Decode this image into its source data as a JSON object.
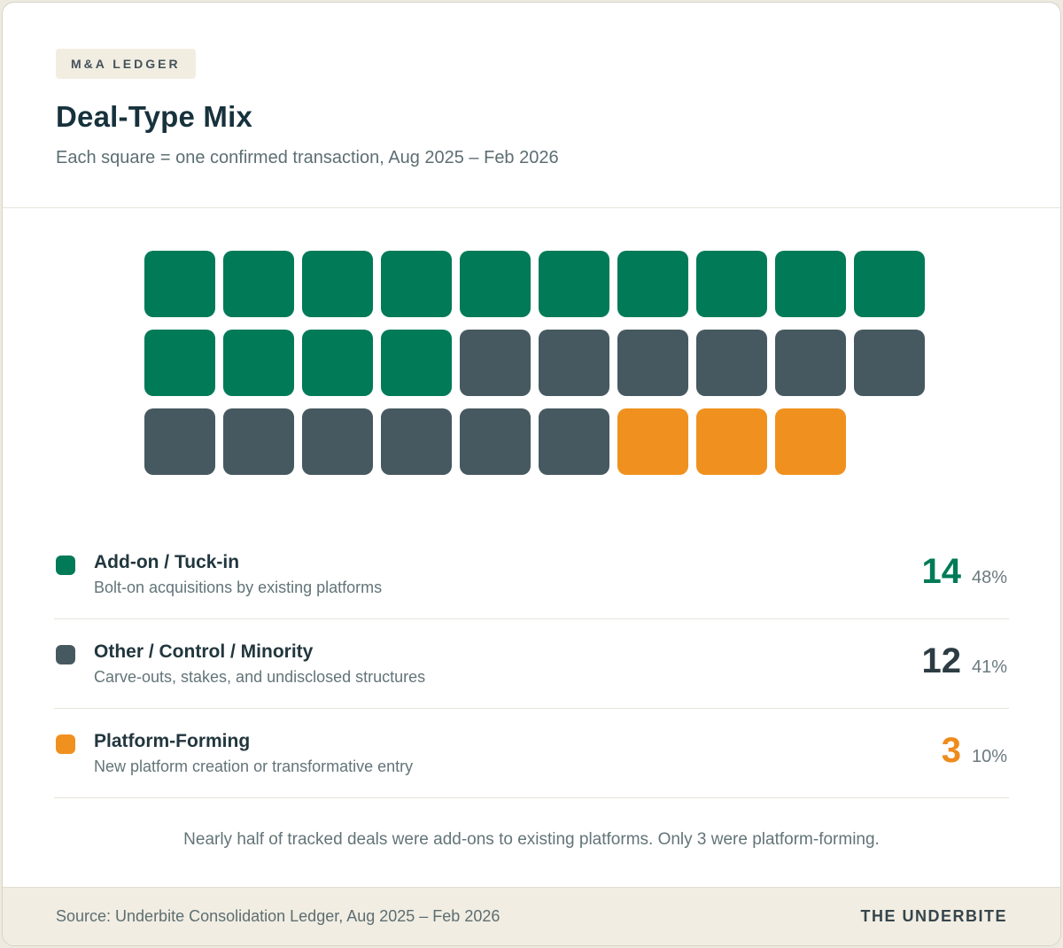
{
  "badge": "M&A LEDGER",
  "title": "Deal-Type Mix",
  "subtitle": "Each square = one confirmed transaction, Aug 2025 – Feb 2026",
  "chart_data": {
    "type": "waffle",
    "title": "Deal-Type Mix",
    "unit": "one confirmed transaction per square",
    "period": "Aug 2025 – Feb 2026",
    "total": 29,
    "columns": 10,
    "categories": [
      "Add-on / Tuck-in",
      "Other / Control / Minority",
      "Platform-Forming"
    ],
    "values": [
      14,
      12,
      3
    ],
    "percents": [
      48,
      41,
      10
    ],
    "colors": [
      "#007a57",
      "#475960",
      "#f0911f"
    ]
  },
  "legend": [
    {
      "label": "Add-on / Tuck-in",
      "desc": "Bolt-on acquisitions by existing platforms",
      "count": "14",
      "percent": "48%",
      "color": "#007a57",
      "count_color": "#007a57"
    },
    {
      "label": "Other / Control / Minority",
      "desc": "Carve-outs, stakes, and undisclosed structures",
      "count": "12",
      "percent": "41%",
      "color": "#475960",
      "count_color": "#2d3c43"
    },
    {
      "label": "Platform-Forming",
      "desc": "New platform creation or transformative entry",
      "count": "3",
      "percent": "10%",
      "color": "#f0911f",
      "count_color": "#ef8b1c"
    }
  ],
  "note": "Nearly half of tracked deals were add-ons to existing platforms. Only 3 were platform-forming.",
  "footer": {
    "source": "Source: Underbite Consolidation Ledger, Aug 2025 – Feb 2026",
    "brand": "THE UNDERBITE"
  }
}
